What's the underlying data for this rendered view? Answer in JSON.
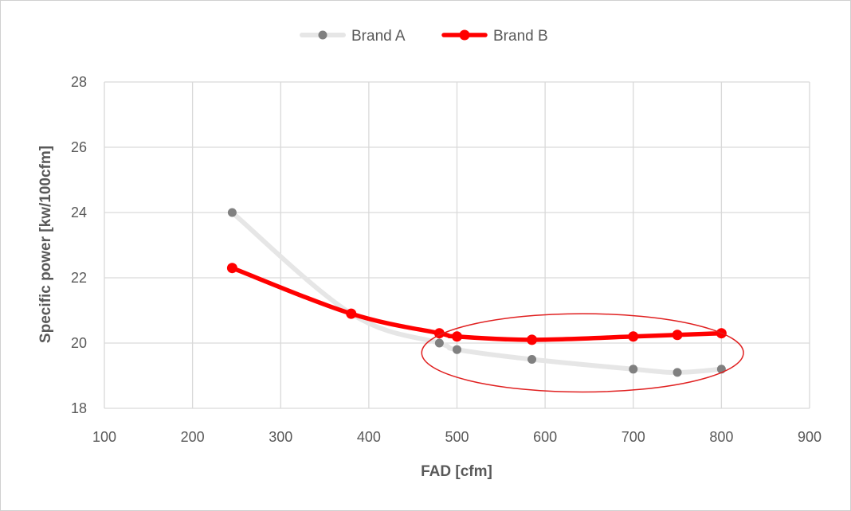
{
  "chart_data": {
    "type": "line",
    "title": "",
    "xlabel": "FAD [cfm]",
    "ylabel": "Specific power [kw/100cfm]",
    "xlim": [
      100,
      900
    ],
    "ylim": [
      18,
      28
    ],
    "x_ticks": [
      100,
      200,
      300,
      400,
      500,
      600,
      700,
      800,
      900
    ],
    "y_ticks": [
      18,
      20,
      22,
      24,
      26,
      28
    ],
    "grid": true,
    "legend_position": "top-center",
    "series": [
      {
        "name": "Brand A",
        "color": "#808080",
        "line_color": "#e6e6e6",
        "points": [
          {
            "x": 245,
            "y": 24.0
          },
          {
            "x": 380,
            "y": 20.9
          },
          {
            "x": 480,
            "y": 20.0
          },
          {
            "x": 500,
            "y": 19.8
          },
          {
            "x": 585,
            "y": 19.5
          },
          {
            "x": 700,
            "y": 19.2
          },
          {
            "x": 750,
            "y": 19.1
          },
          {
            "x": 800,
            "y": 19.2
          }
        ]
      },
      {
        "name": "Brand B",
        "color": "#ff0000",
        "line_color": "#ff0000",
        "points": [
          {
            "x": 245,
            "y": 22.3
          },
          {
            "x": 380,
            "y": 20.9
          },
          {
            "x": 480,
            "y": 20.3
          },
          {
            "x": 500,
            "y": 20.2
          },
          {
            "x": 585,
            "y": 20.1
          },
          {
            "x": 700,
            "y": 20.2
          },
          {
            "x": 750,
            "y": 20.25
          },
          {
            "x": 800,
            "y": 20.3
          }
        ]
      }
    ],
    "annotation": {
      "shape": "ellipse",
      "color": "#e02020",
      "x_range": [
        460,
        825
      ],
      "y_range": [
        18.5,
        20.9
      ]
    }
  }
}
